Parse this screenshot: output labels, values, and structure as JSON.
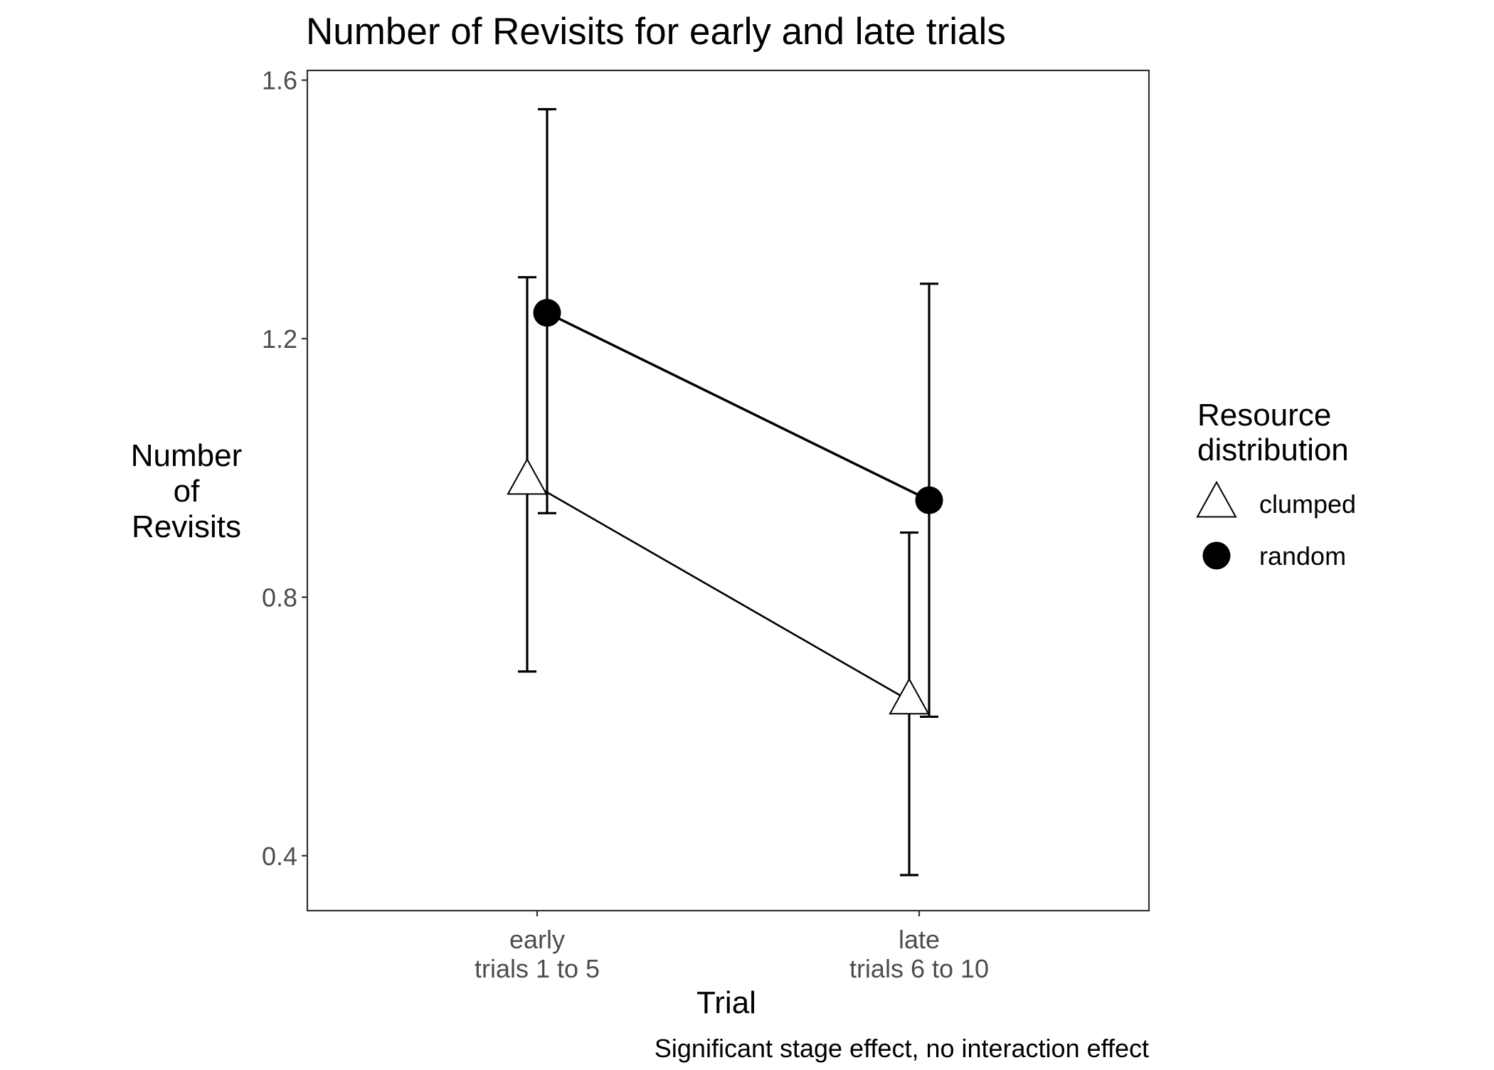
{
  "chart_data": {
    "type": "line",
    "title": "Number of Revisits for early and late trials",
    "xlabel": "Trial",
    "ylabel": [
      "Number",
      "of",
      "Revisits"
    ],
    "caption": "Significant stage effect, no interaction effect",
    "categories": [
      [
        "early",
        "trials 1 to 5"
      ],
      [
        "late",
        "trials 6 to 10"
      ]
    ],
    "ylim": [
      0.315,
      1.615
    ],
    "yticks": [
      0.4,
      0.8,
      1.2,
      1.6
    ],
    "ytick_labels": [
      "0.4",
      "0.8",
      "1.2",
      "1.6"
    ],
    "grid": false,
    "legend": {
      "title": [
        "Resource",
        "distribution"
      ],
      "placement": "right"
    },
    "series": [
      {
        "name": "clumped",
        "marker": "open-triangle",
        "color": "#000000",
        "values": [
          0.98,
          0.64
        ],
        "error_low": [
          0.685,
          0.37
        ],
        "error_high": [
          1.295,
          0.9
        ]
      },
      {
        "name": "random",
        "marker": "filled-circle",
        "color": "#000000",
        "values": [
          1.24,
          0.95
        ],
        "error_low": [
          0.93,
          0.615
        ],
        "error_high": [
          1.555,
          1.285
        ]
      }
    ]
  }
}
